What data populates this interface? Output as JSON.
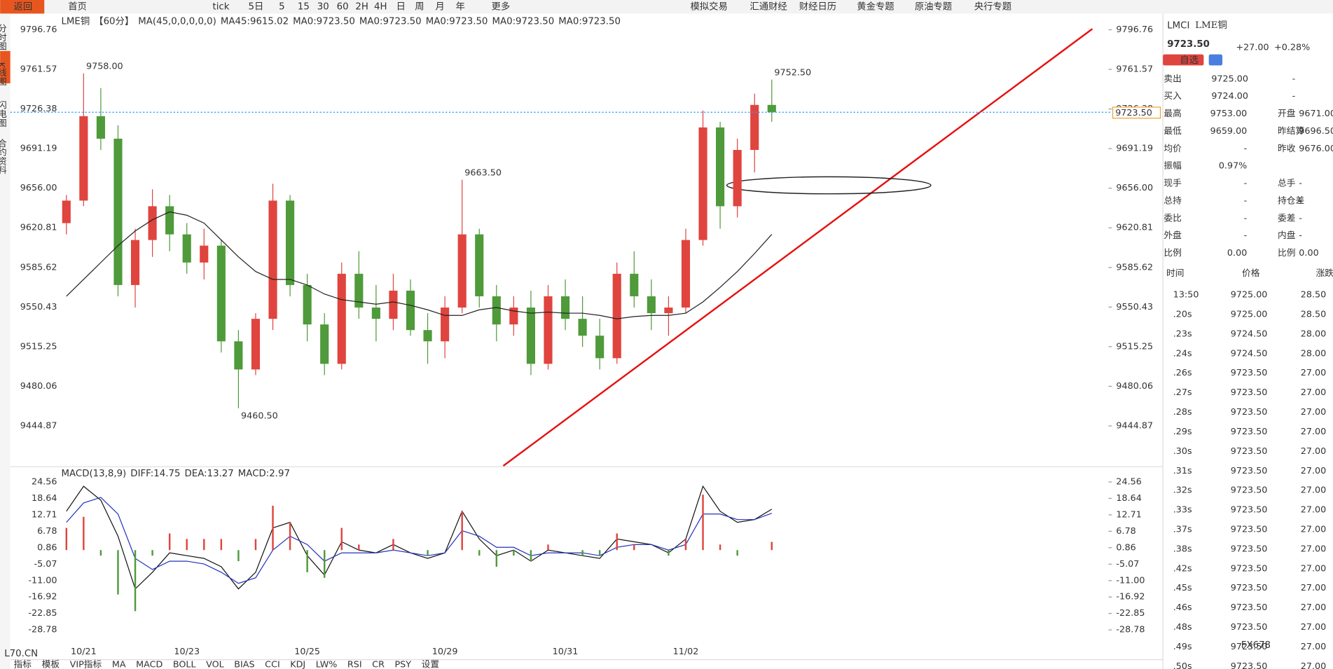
{
  "chart_data": [
    {
      "type": "candlestick",
      "categories": [
        null,
        "10/21",
        null,
        null,
        null,
        null,
        null,
        "10/23",
        null,
        null,
        null,
        null,
        null,
        null,
        "10/25",
        null,
        null,
        null,
        null,
        null,
        null,
        null,
        "10/29",
        null,
        null,
        null,
        null,
        null,
        null,
        "10/31",
        null,
        null,
        null,
        null,
        null,
        null,
        "11/02",
        null,
        null,
        null,
        null,
        null
      ],
      "open": [
        9625,
        9645,
        9720,
        9700,
        9570,
        9610,
        9640,
        9615,
        9590,
        9605,
        9520,
        9495,
        9540,
        9645,
        9570,
        9535,
        9500,
        9580,
        9550,
        9540,
        9565,
        9530,
        9520,
        9550,
        9615,
        9560,
        9535,
        9550,
        9500,
        9560,
        9540,
        9525,
        9505,
        9580,
        9560,
        9545,
        9550,
        9610,
        9710,
        9640,
        9690,
        9730
      ],
      "high": [
        9650,
        9758,
        9745,
        9712,
        9620,
        9655,
        9650,
        9625,
        9620,
        9610,
        9530,
        9545,
        9660,
        9650,
        9580,
        9545,
        9590,
        9600,
        9570,
        9580,
        9575,
        9545,
        9560,
        9663.5,
        9620,
        9570,
        9560,
        9565,
        9570,
        9575,
        9560,
        9540,
        9590,
        9600,
        9575,
        9560,
        9620,
        9725,
        9715,
        9700,
        9740,
        9752.5
      ],
      "low": [
        9615,
        9640,
        9690,
        9560,
        9550,
        9595,
        9600,
        9580,
        9575,
        9510,
        9460.5,
        9490,
        9530,
        9560,
        9520,
        9490,
        9495,
        9540,
        9520,
        9530,
        9525,
        9500,
        9505,
        9545,
        9550,
        9520,
        9525,
        9490,
        9495,
        9530,
        9515,
        9495,
        9500,
        9550,
        9530,
        9525,
        9545,
        9605,
        9620,
        9630,
        9670,
        9715
      ],
      "close": [
        9645,
        9720,
        9700,
        9570,
        9610,
        9640,
        9615,
        9590,
        9605,
        9520,
        9495,
        9540,
        9645,
        9570,
        9535,
        9500,
        9580,
        9550,
        9540,
        9565,
        9530,
        9520,
        9550,
        9615,
        9560,
        9535,
        9550,
        9500,
        9560,
        9540,
        9525,
        9505,
        9580,
        9560,
        9545,
        9550,
        9610,
        9710,
        9640,
        9690,
        9730,
        9723.5
      ],
      "high_labels": [
        null,
        "9758.00",
        null,
        null,
        null,
        null,
        null,
        null,
        null,
        null,
        null,
        null,
        null,
        null,
        null,
        null,
        null,
        null,
        null,
        null,
        null,
        null,
        null,
        "9663.50",
        null,
        null,
        null,
        null,
        null,
        null,
        null,
        null,
        null,
        null,
        null,
        null,
        null,
        null,
        null,
        null,
        null,
        "9752.50"
      ],
      "low_labels": [
        null,
        null,
        null,
        null,
        null,
        null,
        null,
        null,
        null,
        null,
        "9460.50",
        null,
        null,
        null,
        null,
        null,
        null,
        null,
        null,
        null,
        null,
        null,
        null,
        null,
        null,
        null,
        null,
        null,
        null,
        null,
        null,
        null,
        null,
        null,
        null,
        null,
        null,
        null,
        null,
        null,
        null,
        null
      ],
      "up_color": "#e0443e",
      "down_color": "#4f9a3a",
      "ma": {
        "color": "#222222",
        "values": [
          9560,
          9575,
          9590,
          9605,
          9618,
          9628,
          9635,
          9632,
          9625,
          9610,
          9595,
          9582,
          9575,
          9575,
          9570,
          9562,
          9557,
          9555,
          9553,
          9555,
          9552,
          9548,
          9543,
          9543,
          9548,
          9550,
          9547,
          9545,
          9546,
          9545,
          9545,
          9543,
          9540,
          9542,
          9543,
          9543,
          9545,
          9555,
          9568,
          9582,
          9598,
          9615.02
        ]
      },
      "last_price": {
        "value": 9723.5,
        "label": "9723.50"
      },
      "ylim": [
        9409.4,
        9809.6
      ],
      "yticks": [
        9796.76,
        9761.57,
        9726.38,
        9691.19,
        {
          "value": 9656,
          "label": "9656.00"
        },
        9620.81,
        9585.62,
        9550.43,
        9515.25,
        9480.06,
        9444.87
      ]
    },
    {
      "type": "macd",
      "series": [
        {
          "name": "DIFF",
          "color": "#111111",
          "values": [
            14,
            23,
            18,
            5,
            -14,
            -8,
            -1,
            -2,
            -3,
            -6,
            -14,
            -8,
            8,
            10,
            -2,
            -9,
            3,
            0,
            -1,
            2,
            -1,
            -3,
            -1,
            14,
            4,
            -2,
            0,
            -4,
            0,
            -1,
            -2,
            -3,
            4,
            3,
            2,
            -1,
            4,
            23,
            14,
            10,
            11,
            14.75
          ]
        },
        {
          "name": "DEA",
          "color": "#2233bb",
          "values": [
            10,
            17,
            19,
            13,
            -3,
            -7,
            -4,
            -4,
            -5,
            -8,
            -12,
            -10,
            0,
            5,
            2,
            -4,
            -1,
            -1,
            -1,
            0,
            -1,
            -2,
            -1,
            7,
            5,
            1,
            1,
            -2,
            -1,
            -1,
            -1,
            -2,
            1,
            2,
            2,
            0,
            2,
            13,
            13,
            11,
            11,
            13.27
          ]
        },
        {
          "name": "MACD",
          "values": [
            8,
            12,
            -2,
            -16,
            -22,
            -2,
            6,
            4,
            4,
            4,
            -4,
            4,
            16,
            10,
            -8,
            -10,
            8,
            2,
            0,
            4,
            0,
            -2,
            0,
            14,
            -2,
            -6,
            -2,
            -4,
            2,
            0,
            -2,
            -2,
            6,
            2,
            0,
            -2,
            4,
            20,
            2,
            -2,
            0,
            2.97
          ]
        }
      ],
      "ylim": [
        -34.6,
        26.7
      ],
      "yticks": [
        24.56,
        18.64,
        12.71,
        6.78,
        0.86,
        -5.07,
        {
          "value": -11,
          "label": "-11.00"
        },
        -16.92,
        -22.85,
        -28.78
      ]
    }
  ],
  "ui": {
    "toolbar": [
      "返回",
      "首页",
      "tick",
      "5日",
      "5",
      "15",
      "30",
      "60",
      "2H",
      "4H",
      "日",
      "周",
      "月",
      "年",
      "更多",
      "模拟交易",
      "汇通财经",
      "财经日历",
      "黄金专题",
      "原油专题",
      "央行专题"
    ],
    "side_tabs": [
      "分时图",
      "K线图",
      "闪电图",
      "合约资料"
    ],
    "legend": [
      {
        "text": "LME铜",
        "color": "#333333"
      },
      {
        "text": "【60分】",
        "color": "#e08a00"
      },
      {
        "text": "MA(45,0,0,0,0,0)",
        "color": "#333333"
      },
      {
        "text": "MA45:9615.02",
        "color": "#333333"
      },
      {
        "text": "MA0:9723.50",
        "color": "#2233bb"
      },
      {
        "text": "MA0:9723.50",
        "color": "#d020d0"
      },
      {
        "text": "MA0:9723.50",
        "color": "#e08a00"
      },
      {
        "text": "MA0:9723.50",
        "color": "#888888"
      },
      {
        "text": "MA0:9723.50",
        "color": "#e0443e"
      }
    ],
    "macd_legend": [
      {
        "text": "MACD(13,8,9)",
        "color": "#333333"
      },
      {
        "text": "DIFF:14.75",
        "color": "#333333"
      },
      {
        "text": "DEA:13.27",
        "color": "#2233bb"
      },
      {
        "text": "MACD:2.97",
        "color": "#d020d0"
      }
    ],
    "bottom_tabs": [
      "指标",
      "模板",
      "VIP指标",
      "MA",
      "MACD",
      "BOLL",
      "VOL",
      "BIAS",
      "CCI",
      "KDJ",
      "LW%",
      "RSI",
      "CR",
      "PSY",
      "设置"
    ],
    "watermarks": [
      "L70.CN",
      "FX678"
    ],
    "quote": {
      "symbol": "LMCI",
      "name": "LME铜",
      "price": "9723.50",
      "change": "+27.00",
      "pct": "+0.28%",
      "fav": "自选",
      "rows": [
        [
          "卖出",
          "9725.00",
          "-",
          ""
        ],
        [
          "买入",
          "9724.00",
          "-",
          ""
        ],
        [
          "最高",
          "9753.00",
          "开盘",
          "9671.00"
        ],
        [
          "最低",
          "9659.00",
          "昨结算",
          "9696.50"
        ],
        [
          "均价",
          "-",
          "昨收",
          "9676.00"
        ],
        [
          "振幅",
          "0.97%",
          "",
          ""
        ],
        [
          "现手",
          "-",
          "总手",
          "-"
        ],
        [
          "总持",
          "-",
          "持仓差",
          "-"
        ],
        [
          "委比",
          "-",
          "委差",
          "-"
        ],
        [
          "外盘",
          "-",
          "内盘",
          "-"
        ],
        [
          "比例",
          "0.00",
          "比例",
          "0.00"
        ]
      ]
    },
    "trades": {
      "headers": [
        "时间",
        "价格",
        "涨跌"
      ],
      "rows": [
        [
          "13:50",
          "9725.00",
          "28.50"
        ],
        [
          ".20s",
          "9725.00",
          "28.50"
        ],
        [
          ".23s",
          "9724.50",
          "28.00"
        ],
        [
          ".24s",
          "9724.50",
          "28.00"
        ],
        [
          ".26s",
          "9723.50",
          "27.00"
        ],
        [
          ".27s",
          "9723.50",
          "27.00"
        ],
        [
          ".28s",
          "9723.50",
          "27.00"
        ],
        [
          ".29s",
          "9723.50",
          "27.00"
        ],
        [
          ".30s",
          "9723.50",
          "27.00"
        ],
        [
          ".31s",
          "9723.50",
          "27.00"
        ],
        [
          ".32s",
          "9723.50",
          "27.00"
        ],
        [
          ".33s",
          "9723.50",
          "27.00"
        ],
        [
          ".37s",
          "9723.50",
          "27.00"
        ],
        [
          ".38s",
          "9723.50",
          "27.00"
        ],
        [
          ".42s",
          "9723.50",
          "27.00"
        ],
        [
          ".45s",
          "9723.50",
          "27.00"
        ],
        [
          ".46s",
          "9723.50",
          "27.00"
        ],
        [
          ".48s",
          "9723.50",
          "27.00"
        ],
        [
          ".49s",
          "9723.50",
          "27.00"
        ],
        [
          ".50s",
          "9723.50",
          "27.00"
        ]
      ]
    }
  }
}
